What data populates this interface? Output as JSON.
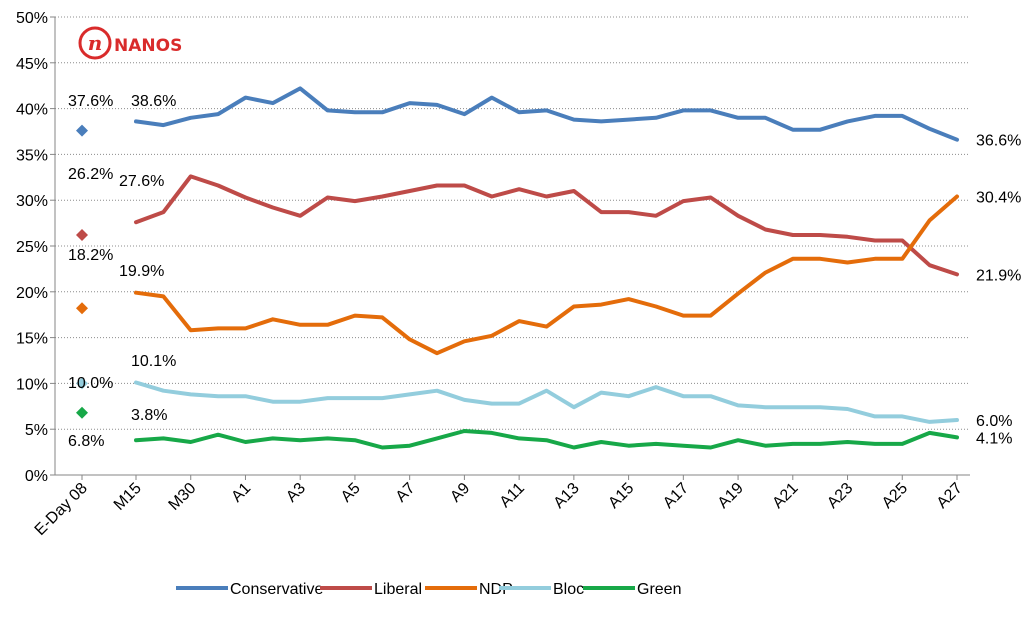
{
  "logo": {
    "text": "NANOS",
    "mark": "n"
  },
  "colors": {
    "conservative": "#4a7ebb",
    "liberal": "#be4b48",
    "ndp": "#e46c0a",
    "bloc": "#93cddd",
    "green": "#17a848",
    "logo": "#d92b2b"
  },
  "chart_data": {
    "type": "line",
    "ylim": [
      0,
      50
    ],
    "y_unit": "%",
    "yticks": [
      "0%",
      "5%",
      "10%",
      "15%",
      "20%",
      "25%",
      "30%",
      "35%",
      "40%",
      "45%",
      "50%"
    ],
    "xticks": [
      "E-Day 08",
      "M15",
      "M30",
      "A1",
      "A3",
      "A5",
      "A7",
      "A9",
      "A11",
      "A13",
      "A15",
      "A17",
      "A19",
      "A21",
      "A23",
      "A25",
      "A27"
    ],
    "grid": "horizontal-dotted",
    "legend_position": "bottom",
    "election_day": {
      "label": "E-Day 08",
      "values": {
        "Conservative": 37.6,
        "Liberal": 26.2,
        "NDP": 18.2,
        "Bloc": 10.0,
        "Green": 6.8
      }
    },
    "series": [
      {
        "name": "Conservative",
        "color_key": "conservative",
        "values": [
          38.6,
          38.2,
          39.0,
          39.4,
          41.2,
          40.6,
          42.2,
          39.8,
          39.6,
          39.6,
          40.6,
          40.4,
          39.4,
          41.2,
          39.6,
          39.8,
          38.8,
          38.6,
          38.8,
          39.0,
          39.8,
          39.8,
          39.0,
          39.0,
          37.7,
          37.7,
          38.6,
          39.2,
          39.2,
          37.8,
          36.6
        ]
      },
      {
        "name": "Liberal",
        "color_key": "liberal",
        "values": [
          27.6,
          28.7,
          32.6,
          31.6,
          30.3,
          29.2,
          28.3,
          30.3,
          29.9,
          30.4,
          31.0,
          31.6,
          31.6,
          30.4,
          31.2,
          30.4,
          31.0,
          28.7,
          28.7,
          28.3,
          29.9,
          30.3,
          28.3,
          26.8,
          26.2,
          26.2,
          26.0,
          25.6,
          25.6,
          22.9,
          21.9
        ]
      },
      {
        "name": "NDP",
        "color_key": "ndp",
        "values": [
          19.9,
          19.5,
          15.8,
          16.0,
          16.0,
          17.0,
          16.4,
          16.4,
          17.4,
          17.2,
          14.8,
          13.3,
          14.6,
          15.2,
          16.8,
          16.2,
          18.4,
          18.6,
          19.2,
          18.4,
          17.4,
          17.4,
          19.8,
          22.1,
          23.6,
          23.6,
          23.2,
          23.6,
          23.6,
          27.8,
          30.4
        ]
      },
      {
        "name": "Bloc",
        "color_key": "bloc",
        "values": [
          10.1,
          9.2,
          8.8,
          8.6,
          8.6,
          8.0,
          8.0,
          8.4,
          8.4,
          8.4,
          8.8,
          9.2,
          8.2,
          7.8,
          7.8,
          9.2,
          7.4,
          9.0,
          8.6,
          9.6,
          8.6,
          8.6,
          7.6,
          7.4,
          7.4,
          7.4,
          7.2,
          6.4,
          6.4,
          5.8,
          6.0
        ]
      },
      {
        "name": "Green",
        "color_key": "green",
        "values": [
          3.8,
          4.0,
          3.6,
          4.4,
          3.6,
          4.0,
          3.8,
          4.0,
          3.8,
          3.0,
          3.2,
          4.0,
          4.8,
          4.6,
          4.0,
          3.8,
          3.0,
          3.6,
          3.2,
          3.4,
          3.2,
          3.0,
          3.8,
          3.2,
          3.4,
          3.4,
          3.6,
          3.4,
          3.4,
          4.6,
          4.1
        ]
      }
    ],
    "labels": {
      "eday": [
        "37.6%",
        "26.2%",
        "18.2%",
        "10.0%",
        "6.8%"
      ],
      "start": [
        "38.6%",
        "27.6%",
        "19.9%",
        "10.1%",
        "3.8%"
      ],
      "end": [
        "36.6%",
        "21.9%",
        "30.4%",
        "6.0%",
        "4.1%"
      ]
    }
  }
}
